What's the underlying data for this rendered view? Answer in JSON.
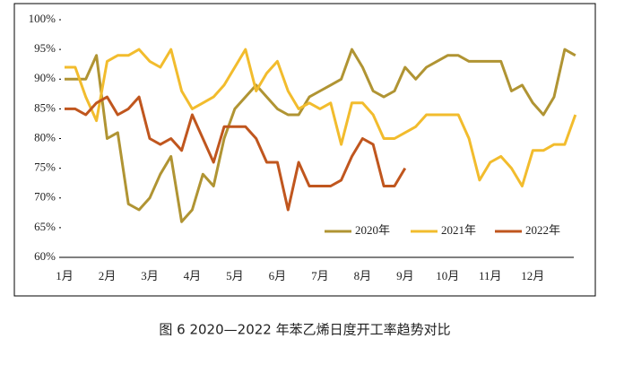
{
  "chart_data": {
    "type": "line",
    "caption": "图 6  2020—2022 年苯乙烯日度开工率趋势对比",
    "categories": [
      "1月",
      null,
      null,
      null,
      "2月",
      null,
      null,
      null,
      "3月",
      null,
      null,
      null,
      "4月",
      null,
      null,
      null,
      "5月",
      null,
      null,
      null,
      "6月",
      null,
      null,
      null,
      "7月",
      null,
      null,
      null,
      "8月",
      null,
      null,
      null,
      "9月",
      null,
      null,
      null,
      "10月",
      null,
      null,
      null,
      "11月",
      null,
      null,
      null,
      "12月",
      null,
      null,
      null,
      null
    ],
    "series": [
      {
        "name": "2020年",
        "color": "#b09433",
        "values": [
          90,
          90,
          90,
          94,
          80,
          81,
          69,
          68,
          70,
          74,
          77,
          66,
          68,
          74,
          72,
          80,
          85,
          87,
          89,
          87,
          85,
          84,
          84,
          87,
          88,
          89,
          90,
          95,
          92,
          88,
          87,
          88,
          92,
          90,
          92,
          93,
          94,
          94,
          93,
          93,
          93,
          93,
          88,
          89,
          86,
          84,
          87,
          95,
          94
        ]
      },
      {
        "name": "2021年",
        "color": "#f2bc2d",
        "values": [
          92,
          92,
          87,
          83,
          93,
          94,
          94,
          95,
          93,
          92,
          95,
          88,
          85,
          86,
          87,
          89,
          92,
          95,
          88,
          91,
          93,
          88,
          85,
          86,
          85,
          86,
          79,
          86,
          86,
          84,
          80,
          80,
          81,
          82,
          84,
          84,
          84,
          84,
          80,
          73,
          76,
          77,
          75,
          72,
          78,
          78,
          79,
          79,
          84
        ]
      },
      {
        "name": "2022年",
        "color": "#c0561e",
        "values": [
          85,
          85,
          84,
          86,
          87,
          84,
          85,
          87,
          80,
          79,
          80,
          78,
          84,
          80,
          76,
          82,
          82,
          82,
          80,
          76,
          76,
          68,
          76,
          72,
          72,
          72,
          73,
          77,
          80,
          79,
          72,
          72,
          75,
          null,
          null,
          null,
          null,
          null,
          null,
          null,
          null,
          null,
          null,
          null,
          null,
          null,
          null,
          null,
          null
        ]
      }
    ],
    "ylim": [
      60,
      100
    ],
    "yticks": [
      {
        "value": 60,
        "label": "60%"
      },
      {
        "value": 65,
        "label": "65%"
      },
      {
        "value": 70,
        "label": "70%"
      },
      {
        "value": 75,
        "label": "75%"
      },
      {
        "value": 80,
        "label": "80%"
      },
      {
        "value": 85,
        "label": "85%"
      },
      {
        "value": 90,
        "label": "90%"
      },
      {
        "value": 95,
        "label": "95%"
      },
      {
        "value": 100,
        "label": "100%"
      }
    ],
    "grid": false,
    "legend": "bottom-right"
  }
}
